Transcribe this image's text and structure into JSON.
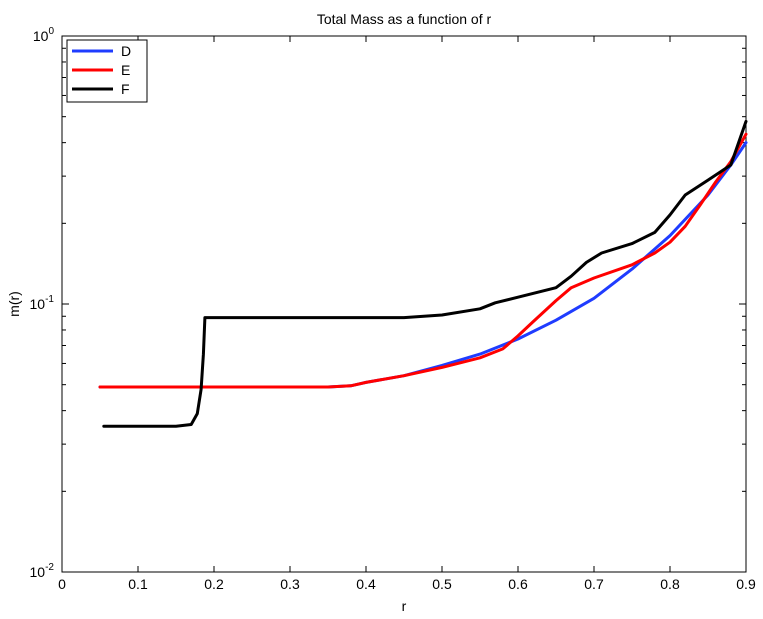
{
  "chart_data": {
    "type": "line",
    "title": "Total Mass as a function of r",
    "xlabel": "r",
    "ylabel": "m(r)",
    "xlim": [
      0,
      0.9
    ],
    "ylim": [
      0.01,
      1
    ],
    "yscale": "log",
    "grid": false,
    "legend_position": "top-left",
    "x_ticks": [
      "0",
      "0.1",
      "0.2",
      "0.3",
      "0.4",
      "0.5",
      "0.6",
      "0.7",
      "0.8",
      "0.9"
    ],
    "x_tick_values": [
      0,
      0.1,
      0.2,
      0.3,
      0.4,
      0.5,
      0.6,
      0.7,
      0.8,
      0.9
    ],
    "y_ticks": [
      {
        "base": "10",
        "exp": "-2",
        "value": 0.01
      },
      {
        "base": "10",
        "exp": "-1",
        "value": 0.1
      },
      {
        "base": "10",
        "exp": "0",
        "value": 1
      }
    ],
    "series": [
      {
        "name": "D",
        "color": "#1f3cff",
        "x": [
          0.05,
          0.1,
          0.15,
          0.2,
          0.25,
          0.3,
          0.35,
          0.38,
          0.4,
          0.45,
          0.5,
          0.55,
          0.6,
          0.65,
          0.7,
          0.75,
          0.8,
          0.85,
          0.88,
          0.9
        ],
        "y": [
          0.049,
          0.049,
          0.049,
          0.049,
          0.049,
          0.049,
          0.049,
          0.0495,
          0.051,
          0.054,
          0.059,
          0.065,
          0.074,
          0.087,
          0.105,
          0.135,
          0.18,
          0.255,
          0.33,
          0.4
        ]
      },
      {
        "name": "E",
        "color": "#ff0000",
        "x": [
          0.05,
          0.1,
          0.15,
          0.2,
          0.25,
          0.3,
          0.35,
          0.38,
          0.4,
          0.45,
          0.5,
          0.55,
          0.58,
          0.6,
          0.62,
          0.65,
          0.67,
          0.7,
          0.75,
          0.78,
          0.8,
          0.82,
          0.84,
          0.86,
          0.88,
          0.9
        ],
        "y": [
          0.049,
          0.049,
          0.049,
          0.049,
          0.049,
          0.049,
          0.049,
          0.0495,
          0.051,
          0.054,
          0.058,
          0.063,
          0.068,
          0.076,
          0.086,
          0.103,
          0.115,
          0.125,
          0.14,
          0.155,
          0.17,
          0.195,
          0.235,
          0.285,
          0.34,
          0.43
        ]
      },
      {
        "name": "F",
        "color": "#000000",
        "x": [
          0.055,
          0.1,
          0.15,
          0.17,
          0.178,
          0.183,
          0.186,
          0.188,
          0.2,
          0.25,
          0.3,
          0.35,
          0.4,
          0.45,
          0.5,
          0.55,
          0.57,
          0.6,
          0.65,
          0.67,
          0.69,
          0.71,
          0.75,
          0.78,
          0.8,
          0.82,
          0.85,
          0.88,
          0.9
        ],
        "y": [
          0.035,
          0.035,
          0.035,
          0.0355,
          0.039,
          0.048,
          0.065,
          0.089,
          0.089,
          0.089,
          0.089,
          0.089,
          0.089,
          0.089,
          0.091,
          0.096,
          0.101,
          0.106,
          0.115,
          0.127,
          0.143,
          0.155,
          0.168,
          0.185,
          0.215,
          0.255,
          0.29,
          0.33,
          0.48
        ]
      }
    ]
  }
}
